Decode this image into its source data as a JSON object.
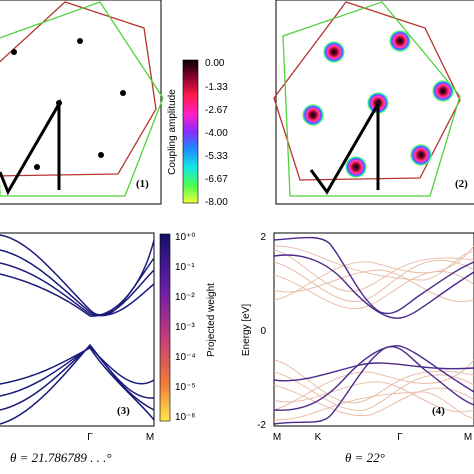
{
  "panels": {
    "p1": {
      "tag": "(1)"
    },
    "p2": {
      "tag": "(2)"
    },
    "p3": {
      "tag": "(3)",
      "x_ticks": [
        "Γ",
        "M"
      ]
    },
    "p4": {
      "tag": "(4)",
      "x_ticks": [
        "M",
        "K",
        "Γ",
        "M"
      ],
      "y_ticks": [
        "2",
        "0",
        "-2"
      ],
      "y_label": "Energy [eV]"
    }
  },
  "colorbar_coupling": {
    "label": "Coupling amplitude",
    "ticks": [
      "0.00",
      "-1.33",
      "-2.67",
      "-4.00",
      "-5.33",
      "-6.67",
      "-8.00"
    ]
  },
  "colorbar_weight": {
    "label": "Projected weight",
    "ticks": [
      "10⁺⁰",
      "10⁻¹",
      "10⁻²",
      "10⁻³",
      "10⁻⁴",
      "10⁻⁵",
      "10⁻⁶"
    ]
  },
  "captions": {
    "left": "θ = 21.786789 . . .°",
    "right": "θ = 22°"
  },
  "colors": {
    "hex_red": "#b5342e",
    "hex_green": "#4fd23a",
    "bands_left": "#1a1a7a",
    "bands_right_strong": "#4b2a8a",
    "bands_right_faint": "#e7b7a0"
  }
}
